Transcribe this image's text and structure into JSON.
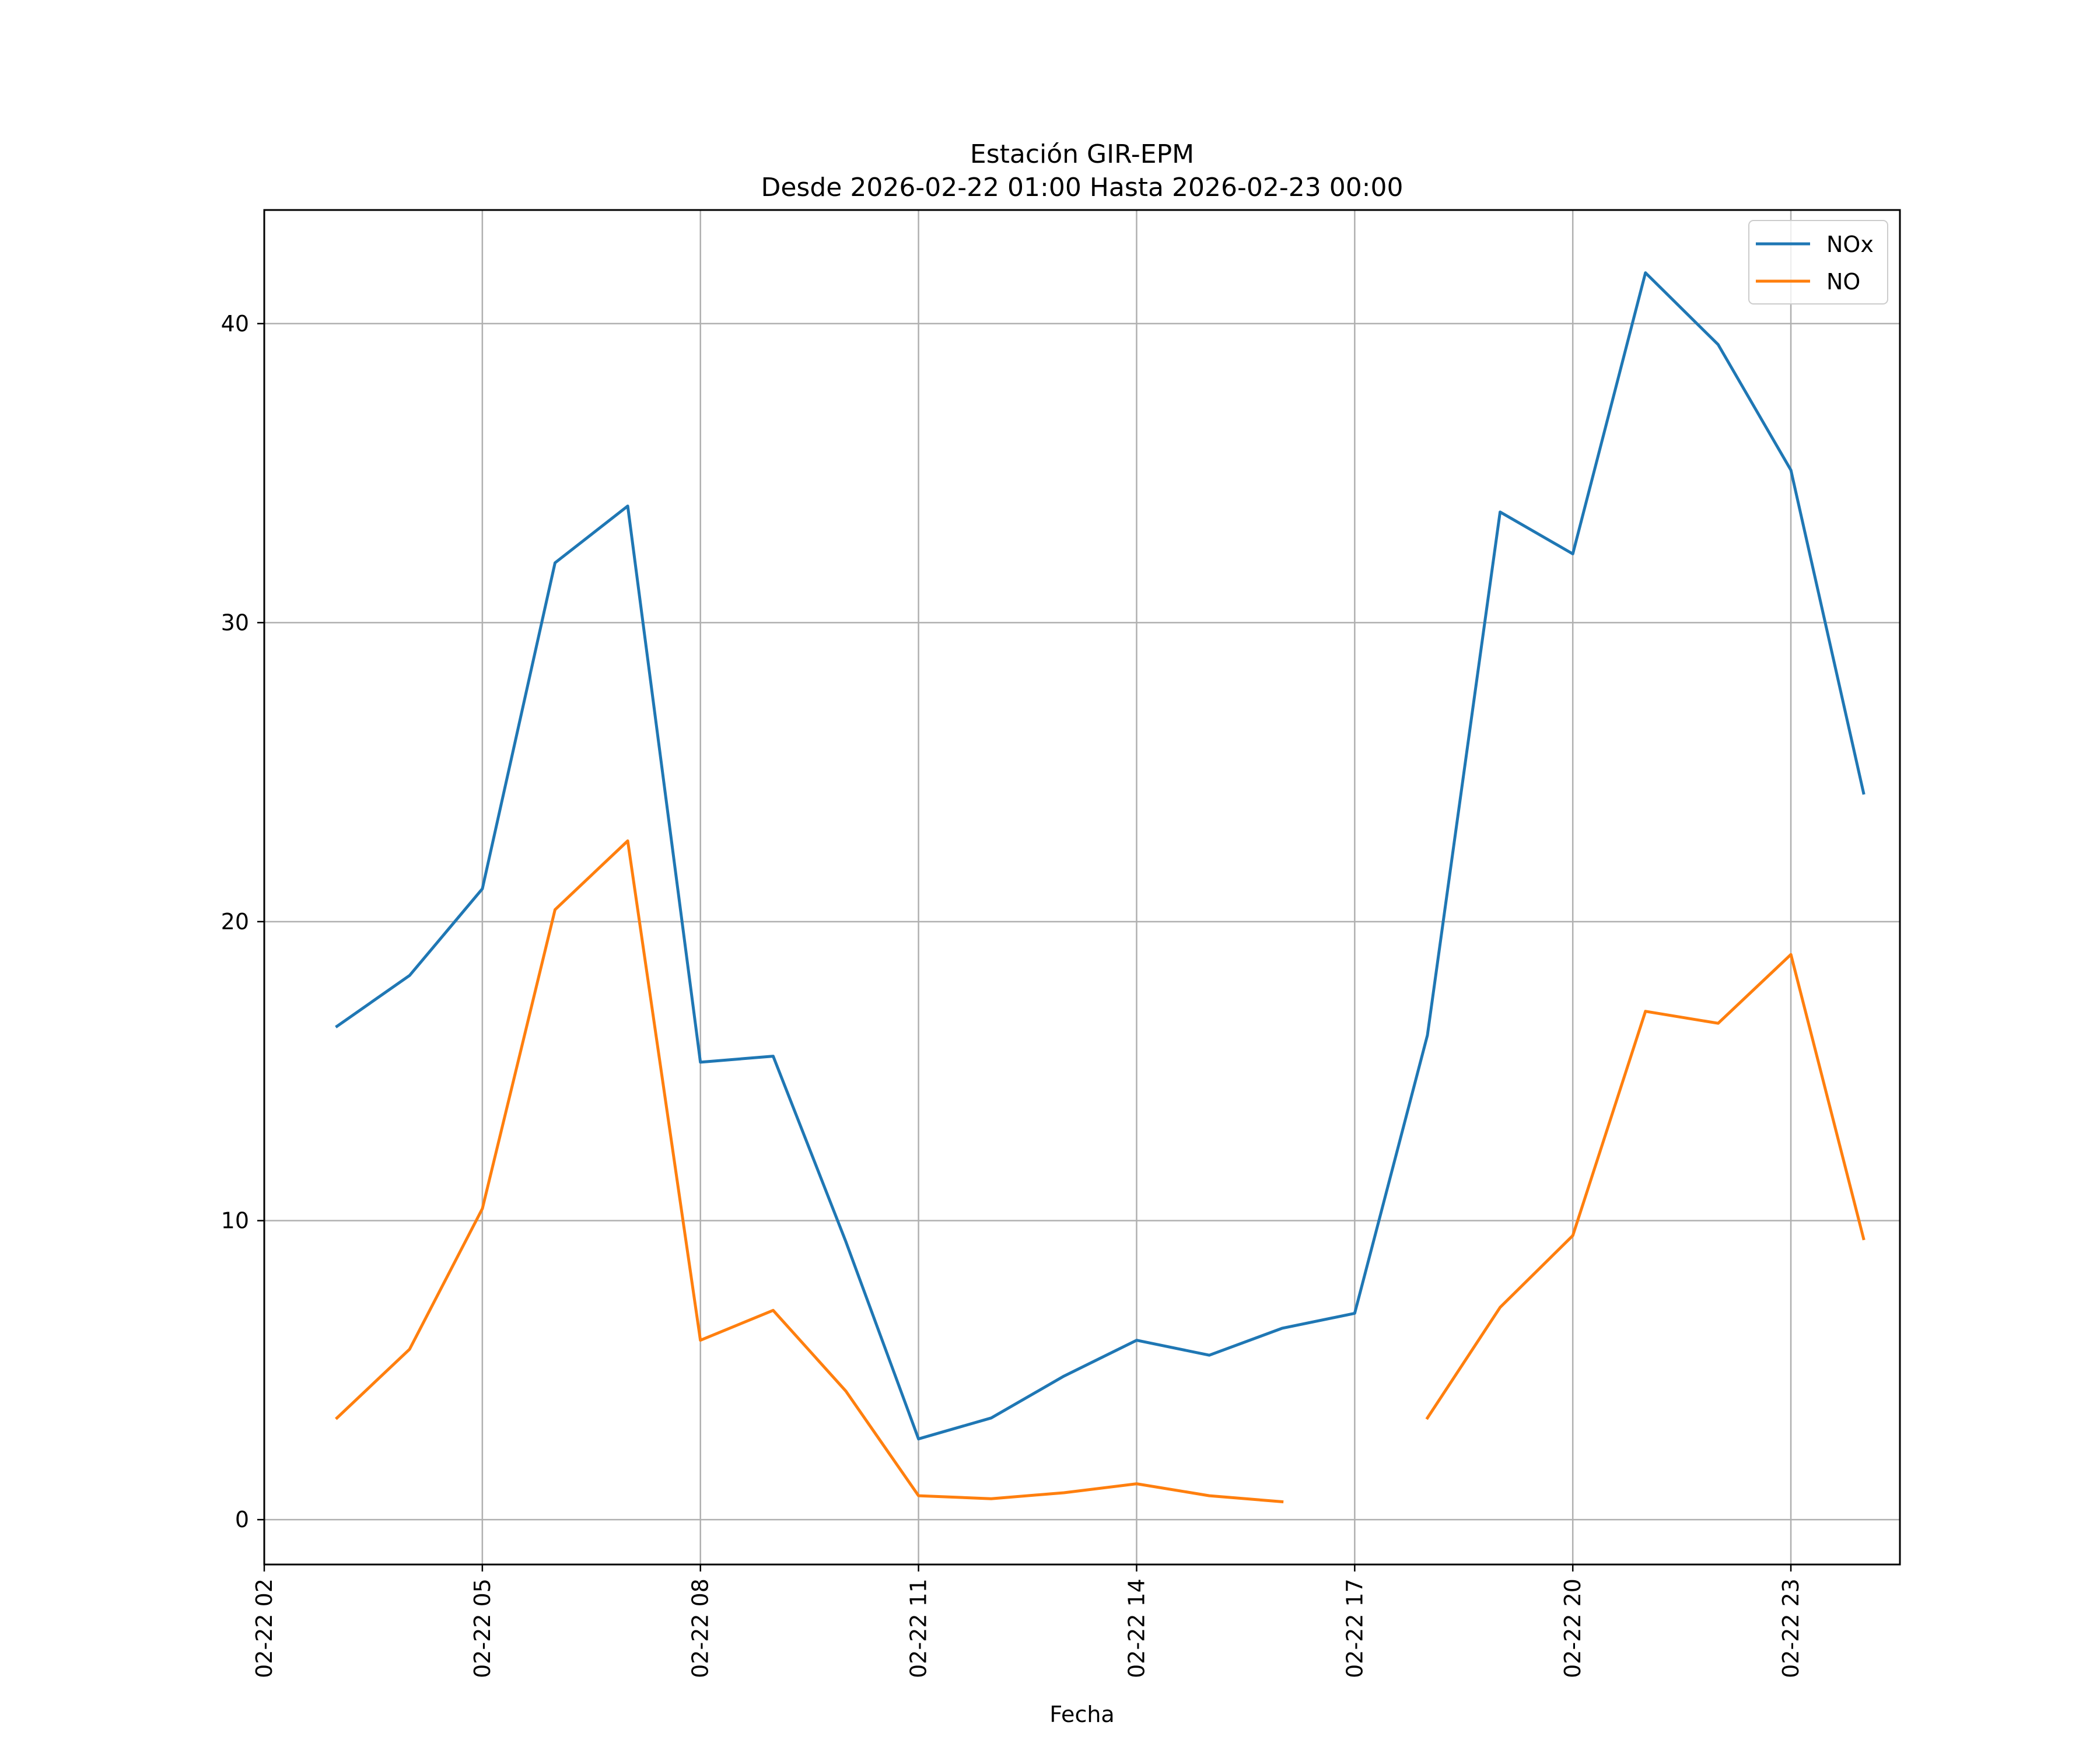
{
  "chart_data": {
    "type": "line",
    "title": "Estación GIR-EPM",
    "subtitle": "Desde 2026-02-22 01:00 Hasta 2026-02-23 00:00",
    "xlabel": "Fecha",
    "ylabel": "",
    "x": [
      "02-22 03",
      "02-22 04",
      "02-22 05",
      "02-22 06",
      "02-22 07",
      "02-22 08",
      "02-22 09",
      "02-22 10",
      "02-22 11",
      "02-22 12",
      "02-22 13",
      "02-22 14",
      "02-22 15",
      "02-22 16",
      "02-22 17",
      "02-22 18",
      "02-22 19",
      "02-22 20",
      "02-22 21",
      "02-22 22",
      "02-22 23",
      "02-23 00"
    ],
    "x_ticks": [
      "02-22 02",
      "02-22 05",
      "02-22 08",
      "02-22 11",
      "02-22 14",
      "02-22 17",
      "02-22 20",
      "02-22 23"
    ],
    "y_ticks": [
      "0",
      "10",
      "20",
      "30",
      "40"
    ],
    "ylim": [
      -1.5,
      43.8
    ],
    "xlim": [
      "02-22 02 (approx.)",
      "02-23 00 (approx.)"
    ],
    "grid": true,
    "legend_position": "top-right",
    "series": [
      {
        "name": "NOx",
        "color": "#1f77b4",
        "values": [
          16.5,
          18.2,
          21.1,
          32.0,
          33.9,
          15.3,
          15.5,
          9.3,
          2.7,
          3.4,
          4.8,
          6.0,
          5.5,
          6.4,
          6.9,
          16.2,
          33.7,
          32.3,
          41.7,
          39.3,
          35.1,
          24.3
        ]
      },
      {
        "name": "NO",
        "color": "#ff7f0e",
        "values": [
          3.4,
          5.7,
          10.4,
          20.4,
          22.7,
          6.0,
          7.0,
          4.3,
          0.8,
          0.7,
          0.9,
          1.2,
          0.8,
          0.6,
          null,
          3.4,
          7.1,
          9.5,
          17.0,
          16.6,
          18.9,
          9.4
        ]
      }
    ]
  }
}
